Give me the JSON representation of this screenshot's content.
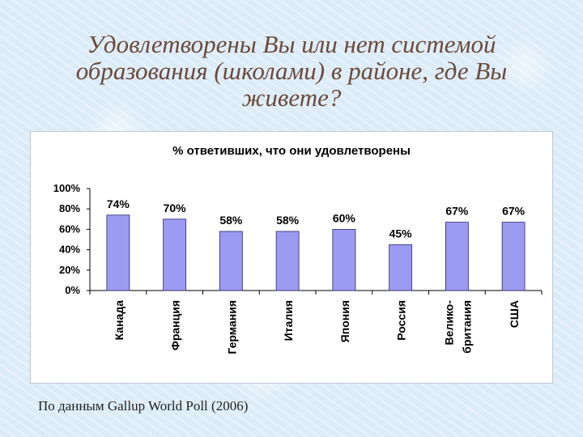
{
  "slide": {
    "title_lines": [
      "Удовлетворены Вы или нет системой",
      "образования (школами) в районе, где Вы",
      "живете?"
    ],
    "source": "По данным Gallup World Poll (2006)"
  },
  "chart_data": {
    "type": "bar",
    "title": "% ответивших, что они удовлетворены",
    "xlabel": "",
    "ylabel": "",
    "categories": [
      "Канада",
      "Франция",
      "Германия",
      "Италия",
      "Япония",
      "Россия",
      "Велико-\nбритания",
      "США"
    ],
    "values": [
      74,
      70,
      58,
      58,
      60,
      45,
      67,
      67
    ],
    "value_labels": [
      "74%",
      "70%",
      "58%",
      "58%",
      "60%",
      "45%",
      "67%",
      "67%"
    ],
    "ylim": [
      0,
      100
    ],
    "yticks": [
      0,
      20,
      40,
      60,
      80,
      100
    ],
    "ytick_labels": [
      "0%",
      "20%",
      "40%",
      "60%",
      "80%",
      "100%"
    ],
    "grid": false,
    "legend": "none",
    "colors": {
      "bar": "#9b9bf2",
      "bar_stroke": "#2a2a6a",
      "axis": "#000000",
      "text": "#000000"
    }
  }
}
